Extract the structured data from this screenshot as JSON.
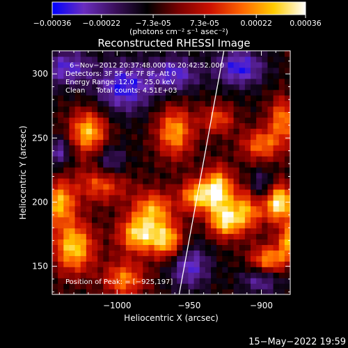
{
  "chart_data": {
    "type": "heatmap",
    "title": "Reconstructed RHESSI Image",
    "colorbar": {
      "ticks": [
        "-0.00036",
        "-0.00022",
        "-7.3e-05",
        "7.3e-05",
        "0.00022",
        "0.00036"
      ],
      "unit_label": "(photons cm⁻² s⁻¹ asec⁻²)",
      "range": [
        -0.00036,
        0.00036
      ],
      "colormap": [
        "#0000ff",
        "#6a2dbf",
        "#3a0f5a",
        "#000000",
        "#7a0000",
        "#cc1100",
        "#ff6600",
        "#ffcc00",
        "#ffffff"
      ]
    },
    "xlabel": "Heliocentric X (arcsec)",
    "ylabel": "Heliocentric Y (arcsec)",
    "xlim": [
      -1045,
      -880
    ],
    "ylim": [
      128,
      318
    ],
    "xticks": [
      {
        "value": -1000,
        "label": "−1000"
      },
      {
        "value": -950,
        "label": "−950"
      },
      {
        "value": -900,
        "label": "−900"
      }
    ],
    "yticks": [
      {
        "value": 150,
        "label": "150"
      },
      {
        "value": 200,
        "label": "200"
      },
      {
        "value": 250,
        "label": "250"
      },
      {
        "value": 300,
        "label": "300"
      }
    ],
    "annotations": [
      "6−Nov−2012 20:37:48.000 to 20:42:52.000",
      "Detectors: 3F 5F 6F 7F 8F, Att 0",
      "Energy Range: 12.0 − 25.0 keV",
      "Clean     Total counts: 4.51E+03"
    ],
    "peak_label": "Position of Peak: = [−925,197]",
    "peak": {
      "x": -925,
      "y": 197
    },
    "limb": [
      {
        "x": -926,
        "y": 318
      },
      {
        "x": -957,
        "y": 128
      }
    ],
    "grid": false,
    "blobs": [
      {
        "x": -1030,
        "y": 165,
        "amp": 1.0,
        "sx": 10,
        "sy": 14
      },
      {
        "x": -1040,
        "y": 200,
        "amp": 0.9,
        "sx": 8,
        "sy": 12
      },
      {
        "x": -1020,
        "y": 255,
        "amp": 0.95,
        "sx": 9,
        "sy": 12
      },
      {
        "x": -1010,
        "y": 215,
        "amp": 0.7,
        "sx": 12,
        "sy": 10
      },
      {
        "x": -995,
        "y": 140,
        "amp": 0.75,
        "sx": 10,
        "sy": 10
      },
      {
        "x": -985,
        "y": 175,
        "amp": 1.0,
        "sx": 10,
        "sy": 10
      },
      {
        "x": -975,
        "y": 195,
        "amp": 0.8,
        "sx": 10,
        "sy": 10
      },
      {
        "x": -965,
        "y": 170,
        "amp": 0.9,
        "sx": 8,
        "sy": 10
      },
      {
        "x": -960,
        "y": 255,
        "amp": 0.85,
        "sx": 9,
        "sy": 14
      },
      {
        "x": -945,
        "y": 205,
        "amp": 0.9,
        "sx": 8,
        "sy": 9
      },
      {
        "x": -930,
        "y": 210,
        "amp": 1.1,
        "sx": 7,
        "sy": 12
      },
      {
        "x": -925,
        "y": 185,
        "amp": 0.95,
        "sx": 8,
        "sy": 9
      },
      {
        "x": -910,
        "y": 195,
        "amp": 0.8,
        "sx": 8,
        "sy": 12
      },
      {
        "x": -900,
        "y": 245,
        "amp": 0.7,
        "sx": 10,
        "sy": 9
      },
      {
        "x": -888,
        "y": 200,
        "amp": 1.2,
        "sx": 8,
        "sy": 10
      },
      {
        "x": -885,
        "y": 265,
        "amp": 0.75,
        "sx": 7,
        "sy": 12
      },
      {
        "x": -895,
        "y": 155,
        "amp": 0.85,
        "sx": 9,
        "sy": 8
      },
      {
        "x": -880,
        "y": 170,
        "amp": 0.85,
        "sx": 6,
        "sy": 10
      },
      {
        "x": -930,
        "y": 265,
        "amp": 0.6,
        "sx": 8,
        "sy": 8
      },
      {
        "x": -1035,
        "y": 305,
        "amp": -0.6,
        "sx": 12,
        "sy": 10
      },
      {
        "x": -995,
        "y": 290,
        "amp": -0.7,
        "sx": 14,
        "sy": 14
      },
      {
        "x": -960,
        "y": 300,
        "amp": -0.6,
        "sx": 12,
        "sy": 10
      },
      {
        "x": -915,
        "y": 305,
        "amp": -0.7,
        "sx": 12,
        "sy": 10
      },
      {
        "x": -900,
        "y": 210,
        "amp": -0.55,
        "sx": 6,
        "sy": 10
      },
      {
        "x": -950,
        "y": 150,
        "amp": -0.6,
        "sx": 10,
        "sy": 12
      },
      {
        "x": -1005,
        "y": 230,
        "amp": -0.5,
        "sx": 8,
        "sy": 10
      },
      {
        "x": -1040,
        "y": 240,
        "amp": -0.5,
        "sx": 6,
        "sy": 8
      },
      {
        "x": -900,
        "y": 140,
        "amp": -0.5,
        "sx": 10,
        "sy": 8
      }
    ]
  },
  "footer": {
    "timestamp": "15−May−2022 19:59"
  }
}
